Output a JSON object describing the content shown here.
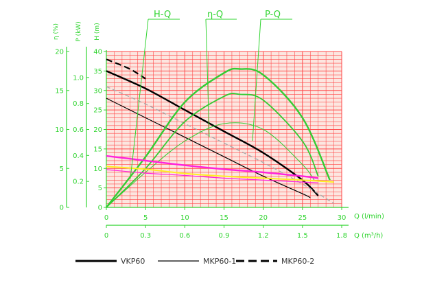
{
  "colors": {
    "axis_green": "#2fd42f",
    "grid_red": "#ff4a4a",
    "plot_bg": "#fce6e0",
    "curve_black": "#000000",
    "eff_green": "#34cc34",
    "power_magenta": "#ff22dd",
    "power_yellow": "#ffee22",
    "vkp60_2_gray": "#aaaaaa"
  },
  "labels": {
    "hq": "H-Q",
    "etaq": "η-Q",
    "pq": "P-Q"
  },
  "chart_data": {
    "type": "line",
    "x_axes": [
      {
        "label": "Q (l/min)",
        "range": [
          0,
          30
        ],
        "ticks": [
          "0",
          "5",
          "10",
          "15",
          "20",
          "25",
          "30"
        ]
      },
      {
        "label": "Q (m³/h)",
        "range": [
          0,
          1.8
        ],
        "ticks": [
          "0",
          "0.3",
          "0.6",
          "0.9",
          "1.2",
          "1.5",
          "1.8"
        ]
      }
    ],
    "y_axes": [
      {
        "label": "η (%)",
        "range": [
          0,
          20
        ],
        "ticks": [
          "0",
          "5",
          "10",
          "15",
          "20"
        ]
      },
      {
        "label": "P (kW)",
        "range": [
          0,
          1.2
        ],
        "ticks": [
          "0.2",
          "0.4",
          "0.6",
          "0.8",
          "1.0"
        ]
      },
      {
        "label": "H (m)",
        "range": [
          0,
          40
        ],
        "ticks": [
          "0",
          "5",
          "10",
          "15",
          "20",
          "25",
          "30",
          "35",
          "40"
        ]
      }
    ],
    "grid": true,
    "legend": [
      {
        "name": "VKP60",
        "style": "thick solid"
      },
      {
        "name": "MKP60-1",
        "style": "thin solid"
      },
      {
        "name": "MKP60-2",
        "style": "dashed"
      }
    ],
    "series": [
      {
        "group": "H-Q",
        "name": "VKP60",
        "x": [
          0,
          5,
          10,
          15,
          20,
          25,
          27
        ],
        "y": [
          35,
          30.5,
          25,
          19.5,
          14,
          7,
          3
        ]
      },
      {
        "group": "H-Q",
        "name": "MKP60-1",
        "x": [
          0,
          5,
          10,
          15,
          20,
          25,
          26
        ],
        "y": [
          28,
          23,
          18,
          13,
          8,
          3.5,
          2.5
        ]
      },
      {
        "group": "H-Q",
        "name": "MKP60-2",
        "x": [
          0,
          3,
          5
        ],
        "y": [
          38,
          35.5,
          33
        ]
      },
      {
        "group": "H-Q",
        "name": "gray dashed",
        "x": [
          0,
          5,
          10,
          15,
          20,
          25,
          29
        ],
        "y": [
          31,
          26.5,
          21.5,
          16.5,
          11.5,
          6,
          1
        ]
      },
      {
        "group": "η-Q",
        "name": "VKP60",
        "x": [
          0,
          5,
          10,
          15,
          17,
          20,
          25,
          28.5
        ],
        "y": [
          0,
          13,
          27,
          34.5,
          35.5,
          34,
          23,
          7
        ]
      },
      {
        "group": "η-Q",
        "name": "MKP60-1",
        "x": [
          0,
          5,
          10,
          15,
          17,
          20,
          25,
          27
        ],
        "y": [
          0,
          10,
          22,
          28.5,
          29,
          27.5,
          17,
          8
        ]
      },
      {
        "group": "η-Q",
        "name": "MKP60-2",
        "x": [
          0,
          5,
          10,
          15,
          20,
          25,
          26.5
        ],
        "y": [
          0,
          9,
          17,
          21.5,
          20,
          11,
          7
        ]
      },
      {
        "group": "P-Q",
        "name": "VKP60",
        "x": [
          0,
          5,
          10,
          15,
          20,
          25,
          27
        ],
        "y": [
          13.2,
          12,
          10.8,
          9.8,
          9,
          8,
          7.5
        ]
      },
      {
        "group": "P-Q",
        "name": "MKP60-1",
        "x": [
          0,
          5,
          10,
          15,
          20,
          25,
          27
        ],
        "y": [
          9.7,
          8.8,
          8.2,
          7.5,
          7,
          6.5,
          6.3
        ]
      },
      {
        "group": "P-Q",
        "name": "MKP60-2",
        "x": [
          0,
          5,
          10,
          15,
          20,
          25,
          29
        ],
        "y": [
          10.5,
          9.8,
          8.7,
          8,
          7.5,
          7,
          6.5
        ]
      }
    ]
  }
}
